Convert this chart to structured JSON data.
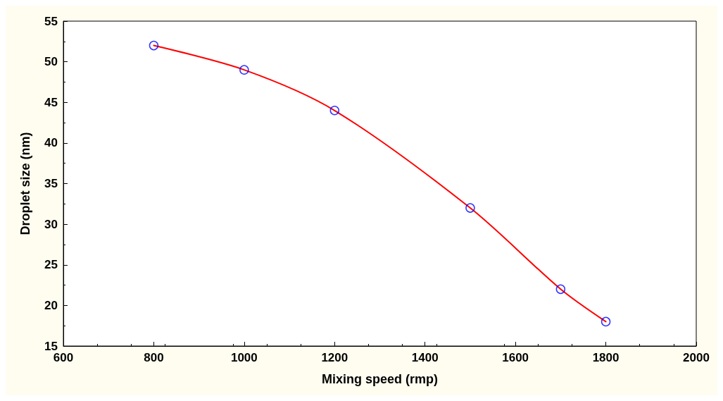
{
  "chart_data": {
    "type": "scatter",
    "xlabel": "Mixing speed (rmp)",
    "ylabel": "Droplet size (nm)",
    "series": [
      {
        "type": "line",
        "color": "#ff0000",
        "x": [
          800,
          1000,
          1200,
          1500,
          1700,
          1800
        ],
        "values": [
          52,
          49,
          44,
          32,
          22,
          18
        ],
        "marker": "none"
      },
      {
        "color": "#0000ff",
        "x": [
          800,
          1000,
          1200,
          1500,
          1700,
          1800
        ],
        "values": [
          52,
          49,
          44,
          32,
          22,
          18
        ],
        "marker": "circle"
      }
    ],
    "xlim": [
      600,
      2000
    ],
    "xticks": [
      600,
      800,
      1000,
      1200,
      1400,
      1600,
      1800,
      2000
    ],
    "ylim": [
      15,
      55
    ],
    "yticks": [
      15,
      20,
      25,
      30,
      35,
      40,
      45,
      50,
      55
    ],
    "grid": false
  }
}
